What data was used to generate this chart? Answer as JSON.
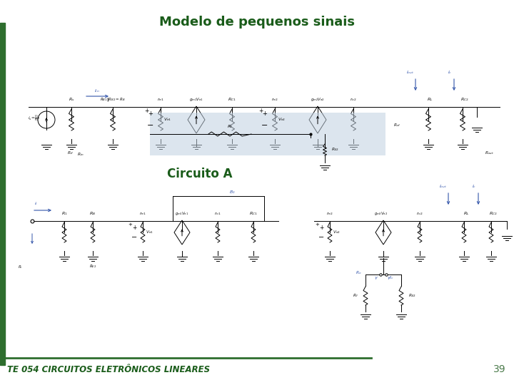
{
  "title": "Modelo de pequenos sinais",
  "subtitle": "Circuito A",
  "footer_text": "TE 054 CIRCUITOS ELETRÔNICOS LINEARES",
  "page_number": "39",
  "bg_color": "#ffffff",
  "title_color": "#1a5c1a",
  "subtitle_color": "#1a5c1a",
  "footer_color": "#1a5c1a",
  "page_num_color": "#4a7a4a",
  "left_bar_color": "#2e6e2e",
  "footer_line_color": "#2e6e2e",
  "circuit_color": "#000000",
  "blue_color": "#3355aa",
  "title_fontsize": 13,
  "subtitle_fontsize": 12,
  "footer_fontsize": 8.5,
  "page_num_fontsize": 10
}
